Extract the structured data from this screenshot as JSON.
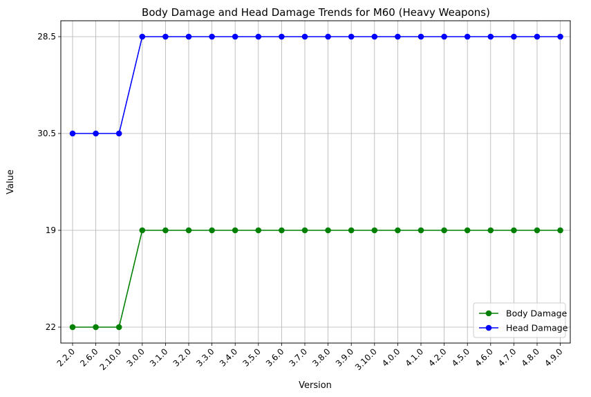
{
  "chart_data": {
    "type": "line",
    "title": "Body Damage and Head Damage Trends for M60 (Heavy Weapons)",
    "xlabel": "Version",
    "ylabel": "Value",
    "categories": [
      "2.2.0",
      "2.6.0",
      "2.10.0",
      "3.0.0",
      "3.1.0",
      "3.2.0",
      "3.3.0",
      "3.4.0",
      "3.5.0",
      "3.6.0",
      "3.7.0",
      "3.8.0",
      "3.9.0",
      "3.10.0",
      "4.0.0",
      "4.1.0",
      "4.2.0",
      "4.5.0",
      "4.6.0",
      "4.7.0",
      "4.8.0",
      "4.9.0"
    ],
    "y_ticks": [
      "22",
      "19",
      "30.5",
      "28.5"
    ],
    "series": [
      {
        "name": "Body Damage",
        "color": "#008000",
        "values": [
          "22",
          "22",
          "22",
          "19",
          "19",
          "19",
          "19",
          "19",
          "19",
          "19",
          "19",
          "19",
          "19",
          "19",
          "19",
          "19",
          "19",
          "19",
          "19",
          "19",
          "19",
          "19"
        ]
      },
      {
        "name": "Head Damage",
        "color": "#0000ff",
        "values": [
          "30.5",
          "30.5",
          "30.5",
          "28.5",
          "28.5",
          "28.5",
          "28.5",
          "28.5",
          "28.5",
          "28.5",
          "28.5",
          "28.5",
          "28.5",
          "28.5",
          "28.5",
          "28.5",
          "28.5",
          "28.5",
          "28.5",
          "28.5",
          "28.5",
          "28.5"
        ]
      }
    ],
    "y_axis_scale": "categorical",
    "grid": true,
    "legend_position": "lower-right"
  }
}
